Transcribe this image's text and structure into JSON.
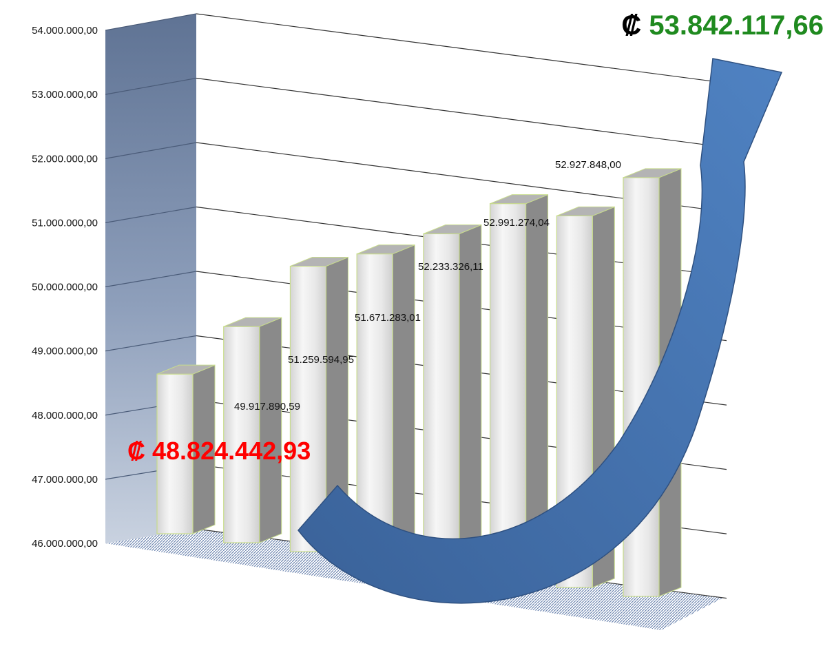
{
  "chart_data": {
    "type": "bar",
    "categories": [
      "",
      "",
      "",
      "",
      "",
      "",
      "",
      ""
    ],
    "values": [
      48824442.93,
      49917890.59,
      51259594.95,
      51671283.01,
      52233326.11,
      52991274.04,
      52927848.0,
      53842117.66
    ],
    "data_labels": [
      "₡ 48.824.442,93",
      "49.917.890,59",
      "51.259.594,95",
      "51.671.283,01",
      "52.233.326,11",
      "52.991.274,04",
      "52.927.848,00",
      "₡ 53.842.117,66"
    ],
    "ylim": [
      46000000,
      54000000
    ],
    "yticks": [
      "46.000.000,00",
      "47.000.000,00",
      "48.000.000,00",
      "49.000.000,00",
      "50.000.000,00",
      "51.000.000,00",
      "52.000.000,00",
      "53.000.000,00",
      "54.000.000,00"
    ],
    "grid": true,
    "title": "",
    "xlabel": "",
    "ylabel": "",
    "colors": {
      "bar_front": "#e6e6e6",
      "bar_side": "#8a8a8a",
      "bar_top": "#b4b4b4",
      "bar_edge": "#c8dc8c",
      "wall": "#6a7e9e",
      "arrow": "#3e6aa6",
      "first_highlight": "#ff0000",
      "last_highlight": "#1f8a1f"
    }
  }
}
